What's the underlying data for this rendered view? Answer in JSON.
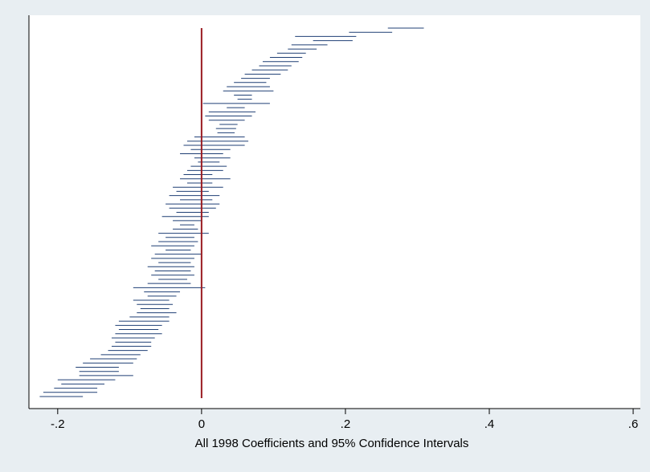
{
  "chart_data": {
    "type": "interval",
    "title": "",
    "xlabel": "All 1998 Coefficients and 95% Confidence Intervals",
    "ylabel": "",
    "xlim": [
      -0.24,
      0.61
    ],
    "xticks": [
      -0.2,
      0,
      0.2,
      0.4,
      0.6
    ],
    "xtick_labels": [
      "-.2",
      "0",
      ".2",
      ".4",
      ".6"
    ],
    "reference_line": {
      "x": 0,
      "color": "#9a1c22"
    },
    "series_color": "#1f3f74",
    "grid": false,
    "intervals": [
      [
        0.259,
        0.309
      ],
      [
        0.205,
        0.265
      ],
      [
        0.13,
        0.215
      ],
      [
        0.155,
        0.21
      ],
      [
        0.125,
        0.175
      ],
      [
        0.12,
        0.16
      ],
      [
        0.105,
        0.145
      ],
      [
        0.095,
        0.14
      ],
      [
        0.085,
        0.135
      ],
      [
        0.08,
        0.125
      ],
      [
        0.07,
        0.12
      ],
      [
        0.06,
        0.11
      ],
      [
        0.055,
        0.095
      ],
      [
        0.045,
        0.09
      ],
      [
        0.035,
        0.095
      ],
      [
        0.03,
        0.1
      ],
      [
        0.045,
        0.07
      ],
      [
        0.05,
        0.07
      ],
      [
        0.002,
        0.095
      ],
      [
        0.035,
        0.06
      ],
      [
        0.01,
        0.075
      ],
      [
        0.005,
        0.07
      ],
      [
        0.01,
        0.06
      ],
      [
        0.025,
        0.05
      ],
      [
        0.02,
        0.048
      ],
      [
        0.022,
        0.046
      ],
      [
        -0.01,
        0.06
      ],
      [
        -0.02,
        0.065
      ],
      [
        -0.025,
        0.06
      ],
      [
        -0.015,
        0.04
      ],
      [
        -0.03,
        0.03
      ],
      [
        -0.01,
        0.04
      ],
      [
        -0.005,
        0.025
      ],
      [
        -0.015,
        0.035
      ],
      [
        -0.02,
        0.03
      ],
      [
        -0.025,
        0.015
      ],
      [
        -0.03,
        0.04
      ],
      [
        -0.02,
        0.015
      ],
      [
        -0.04,
        0.03
      ],
      [
        -0.035,
        0.01
      ],
      [
        -0.045,
        0.025
      ],
      [
        -0.03,
        0.015
      ],
      [
        -0.05,
        0.025
      ],
      [
        -0.045,
        0.02
      ],
      [
        -0.035,
        0.01
      ],
      [
        -0.055,
        0.01
      ],
      [
        -0.04,
        0.0
      ],
      [
        -0.03,
        -0.01
      ],
      [
        -0.04,
        -0.005
      ],
      [
        -0.06,
        0.01
      ],
      [
        -0.05,
        -0.01
      ],
      [
        -0.06,
        -0.005
      ],
      [
        -0.07,
        -0.01
      ],
      [
        -0.05,
        -0.015
      ],
      [
        -0.065,
        0.0
      ],
      [
        -0.07,
        -0.01
      ],
      [
        -0.06,
        -0.015
      ],
      [
        -0.075,
        -0.01
      ],
      [
        -0.065,
        -0.015
      ],
      [
        -0.07,
        -0.01
      ],
      [
        -0.06,
        -0.02
      ],
      [
        -0.075,
        -0.015
      ],
      [
        -0.095,
        0.005
      ],
      [
        -0.08,
        -0.03
      ],
      [
        -0.075,
        -0.035
      ],
      [
        -0.095,
        -0.045
      ],
      [
        -0.09,
        -0.04
      ],
      [
        -0.085,
        -0.045
      ],
      [
        -0.09,
        -0.035
      ],
      [
        -0.1,
        -0.045
      ],
      [
        -0.115,
        -0.045
      ],
      [
        -0.12,
        -0.055
      ],
      [
        -0.115,
        -0.06
      ],
      [
        -0.12,
        -0.055
      ],
      [
        -0.125,
        -0.065
      ],
      [
        -0.12,
        -0.07
      ],
      [
        -0.125,
        -0.07
      ],
      [
        -0.13,
        -0.075
      ],
      [
        -0.14,
        -0.085
      ],
      [
        -0.155,
        -0.09
      ],
      [
        -0.165,
        -0.095
      ],
      [
        -0.175,
        -0.115
      ],
      [
        -0.17,
        -0.115
      ],
      [
        -0.17,
        -0.095
      ],
      [
        -0.2,
        -0.12
      ],
      [
        -0.195,
        -0.135
      ],
      [
        -0.205,
        -0.145
      ],
      [
        -0.22,
        -0.145
      ],
      [
        -0.225,
        -0.165
      ]
    ]
  }
}
